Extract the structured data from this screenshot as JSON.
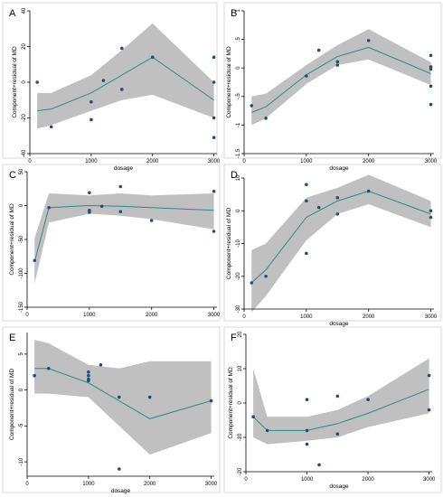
{
  "chart_data": [
    {
      "id": "A",
      "type": "line",
      "label": "A",
      "xlabel": "dosage",
      "ylabel": "Component+residual of MD",
      "xlim": [
        0,
        3050
      ],
      "ylim": [
        -40,
        40
      ],
      "xticks": [
        0,
        1000,
        2000,
        3000
      ],
      "yticks": [
        -40,
        -20,
        0,
        20,
        40
      ],
      "ytick_rotate": true,
      "fit": {
        "x": [
          120,
          350,
          1000,
          1500,
          2000,
          3000
        ],
        "y": [
          -16,
          -15,
          -6,
          4,
          14,
          -10
        ],
        "lower": [
          -26,
          -24,
          -16,
          -10,
          -7,
          -20
        ],
        "upper": [
          -6,
          -6,
          4,
          18,
          33,
          0
        ]
      },
      "points": {
        "x": [
          120,
          350,
          1000,
          1000,
          1200,
          1500,
          1500,
          2000,
          3000,
          3000,
          3000,
          3000
        ],
        "y": [
          0,
          -25,
          -11,
          -21,
          1,
          19,
          -4,
          14,
          14,
          0,
          -20,
          -31
        ]
      }
    },
    {
      "id": "B",
      "type": "line",
      "label": "B",
      "xlabel": "dosage",
      "ylabel": "Component+residual of MD",
      "xlim": [
        0,
        3050
      ],
      "ylim": [
        -1.5,
        1
      ],
      "xticks": [
        0,
        1000,
        2000,
        3000
      ],
      "yticks": [
        -1.5,
        -1,
        -0.5,
        0,
        0.5,
        1
      ],
      "ytick_labels": [
        "-1.5",
        "-1",
        "-.5",
        "0",
        ".5",
        "1"
      ],
      "ytick_rotate": true,
      "fit": {
        "x": [
          120,
          350,
          1000,
          1500,
          2000,
          3000
        ],
        "y": [
          -0.78,
          -0.68,
          -0.12,
          0.2,
          0.36,
          -0.1
        ],
        "lower": [
          -1.0,
          -0.88,
          -0.28,
          0.05,
          0.15,
          -0.3
        ],
        "upper": [
          -0.5,
          -0.45,
          0.05,
          0.4,
          0.68,
          0.1
        ]
      },
      "points": {
        "x": [
          120,
          350,
          1000,
          1200,
          1500,
          1500,
          2000,
          3000,
          3000,
          3000,
          3000,
          3000
        ],
        "y": [
          -0.66,
          -0.88,
          -0.14,
          0.31,
          0.05,
          0.11,
          0.48,
          0.22,
          0.02,
          -0.02,
          -0.32,
          -0.64
        ]
      }
    },
    {
      "id": "C",
      "type": "line",
      "label": "C",
      "xlabel": "",
      "ylabel": "Component+residual of MD",
      "xlim": [
        0,
        3050
      ],
      "ylim": [
        -150,
        50
      ],
      "xticks": [
        0,
        1000,
        2000,
        3000
      ],
      "yticks": [
        -150,
        -100,
        -50,
        0,
        50
      ],
      "ytick_rotate": true,
      "fit": {
        "x": [
          120,
          350,
          1000,
          1500,
          2000,
          3000
        ],
        "y": [
          -83,
          -3,
          0,
          -1,
          -3,
          -7
        ],
        "lower": [
          -115,
          -25,
          -12,
          -15,
          -20,
          -35
        ],
        "upper": [
          -48,
          18,
          15,
          18,
          15,
          18
        ]
      },
      "points": {
        "x": [
          120,
          350,
          1000,
          1000,
          1000,
          1200,
          1500,
          1500,
          2000,
          3000,
          3000
        ],
        "y": [
          -81,
          -3,
          19,
          -10,
          -7,
          -1,
          28,
          -9,
          -22,
          21,
          -38
        ]
      }
    },
    {
      "id": "D",
      "type": "line",
      "label": "D",
      "xlabel": "dosage",
      "ylabel": "Component+residual of MD",
      "xlim": [
        0,
        3050
      ],
      "ylim": [
        -30,
        10
      ],
      "xticks": [
        0,
        1000,
        2000,
        3000
      ],
      "yticks": [
        -30,
        -20,
        -10,
        0,
        10
      ],
      "ytick_rotate": true,
      "fit": {
        "x": [
          120,
          350,
          1000,
          1500,
          2000,
          3000
        ],
        "y": [
          -22,
          -18,
          -2,
          3,
          6,
          -1
        ],
        "lower": [
          -31,
          -26,
          -9,
          -1,
          2,
          -5
        ],
        "upper": [
          -12,
          -10,
          4,
          7,
          11,
          3
        ]
      },
      "points": {
        "x": [
          120,
          350,
          1000,
          1000,
          1000,
          1200,
          1500,
          1500,
          2000,
          3000,
          3000
        ],
        "y": [
          -22,
          -20,
          8,
          3,
          -13,
          1,
          4,
          -1,
          6,
          0,
          -2
        ]
      }
    },
    {
      "id": "E",
      "type": "line",
      "label": "E",
      "xlabel": "dosage",
      "ylabel": "Component+residual of MD",
      "xlim": [
        0,
        3050
      ],
      "ylim": [
        -12,
        8
      ],
      "xticks": [
        0,
        1000,
        2000,
        3000
      ],
      "yticks": [
        -10,
        -5,
        0,
        5
      ],
      "ytick_rotate": true,
      "fit": {
        "x": [
          120,
          350,
          1000,
          1500,
          2000,
          3000
        ],
        "y": [
          3,
          3,
          1,
          -1.5,
          -4,
          -1.5
        ],
        "lower": [
          -0.5,
          -0.5,
          -1,
          -5,
          -9,
          -6
        ],
        "upper": [
          7,
          6.5,
          3.5,
          3,
          4,
          4
        ]
      },
      "points": {
        "x": [
          120,
          350,
          1000,
          1000,
          1000,
          1000,
          1200,
          1500,
          1500,
          2000,
          3000
        ],
        "y": [
          2,
          3,
          2.5,
          2,
          1.5,
          1.3,
          3.5,
          -1,
          -11,
          -1,
          -1.5
        ]
      }
    },
    {
      "id": "F",
      "type": "line",
      "label": "F",
      "xlabel": "dosage",
      "ylabel": "Component+residual of MD",
      "xlim": [
        0,
        3050
      ],
      "ylim": [
        -20,
        20
      ],
      "xticks": [
        0,
        1000,
        2000,
        3000
      ],
      "yticks": [
        -20,
        -10,
        0,
        10,
        20
      ],
      "ytick_rotate": true,
      "fit": {
        "x": [
          120,
          350,
          1000,
          1500,
          2000,
          3000
        ],
        "y": [
          -4,
          -8,
          -8,
          -6,
          -3,
          4
        ],
        "lower": [
          -10,
          -12,
          -11,
          -10,
          -7,
          -3
        ],
        "upper": [
          10,
          -4,
          -4,
          -2,
          2,
          13
        ]
      },
      "points": {
        "x": [
          120,
          350,
          1000,
          1000,
          1000,
          1200,
          1500,
          1500,
          2000,
          3000,
          3000
        ],
        "y": [
          -4,
          -8,
          1,
          -8,
          -12,
          -18,
          2,
          -9,
          1,
          8,
          -2
        ]
      }
    }
  ]
}
